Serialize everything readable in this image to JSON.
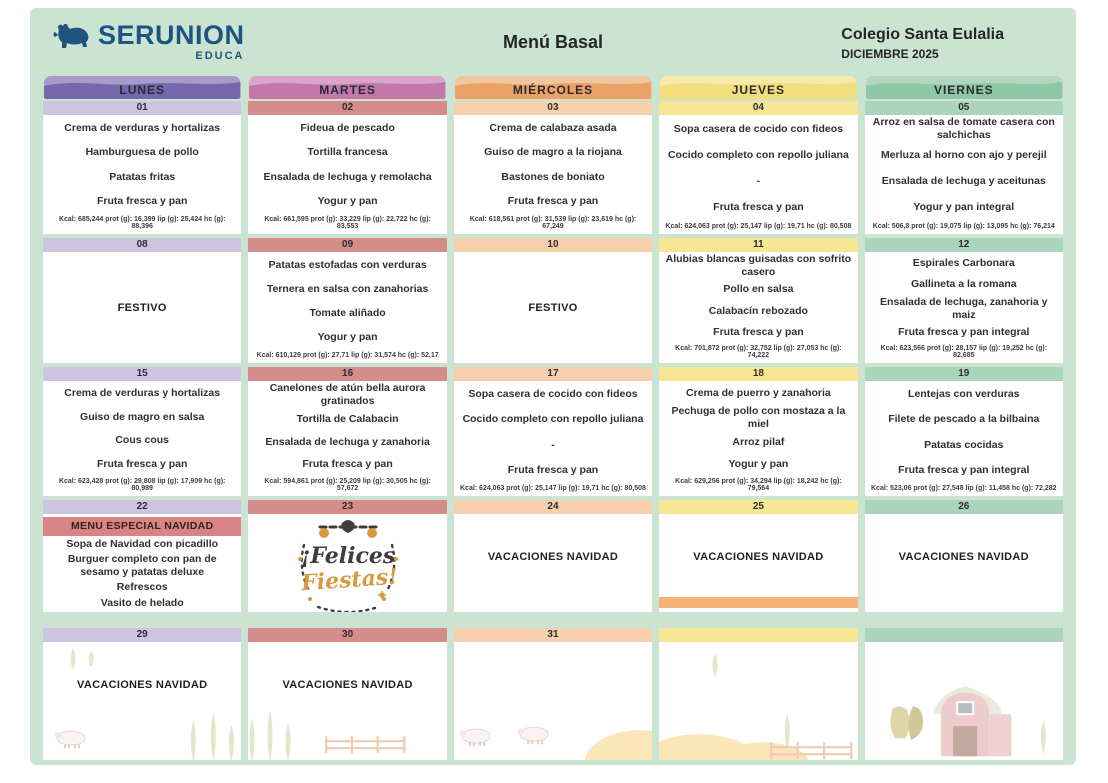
{
  "header": {
    "brand": "SERUNION",
    "brand_sub": "EDUCA",
    "title": "Menú Basal",
    "school": "Colegio Santa Eulalia",
    "month": "DICIEMBRE 2025"
  },
  "weekdays": [
    "LUNES",
    "MARTES",
    "MIÉRCOLES",
    "JUEVES",
    "VIERNES"
  ],
  "colors": {
    "panel_bg": "#cbe3d1",
    "brand_blue": "#1d5480",
    "special_banner": "#d98484",
    "orange_strip": "#f5b276",
    "columns": [
      {
        "header": "#7568ac",
        "header_light": "#a79bc9",
        "daybar": "#cdc4e2"
      },
      {
        "header": "#c477ab",
        "header_light": "#d9a6ca",
        "daybar": "#d48d8a"
      },
      {
        "header": "#eaa268",
        "header_light": "#f2c69c",
        "daybar": "#f6cfab"
      },
      {
        "header": "#f2de7d",
        "header_light": "#f7eaa8",
        "daybar": "#f7e693"
      },
      {
        "header": "#8ec7a4",
        "header_light": "#b1d7c0",
        "daybar": "#aad4bb"
      }
    ]
  },
  "weeks": [
    {
      "days": [
        {
          "number": "01",
          "items": [
            "Crema de verduras y hortalizas",
            "Hamburguesa de pollo",
            "Patatas fritas",
            "Fruta fresca y pan"
          ],
          "kcal": "Kcal: 685,244 prot (g): 16,399 lip (g): 25,424 hc (g): 88,396"
        },
        {
          "number": "02",
          "items": [
            "Fideua de pescado",
            "Tortilla francesa",
            "Ensalada de lechuga y remolacha",
            "Yogur y pan"
          ],
          "kcal": "Kcal: 661,595 prot (g): 33,229 lip (g): 22,722 hc (g): 83,553"
        },
        {
          "number": "03",
          "items": [
            "Crema de calabaza asada",
            "Guiso de magro a  la riojana",
            "Bastones de boniato",
            "Fruta fresca y pan"
          ],
          "kcal": "Kcal: 618,561 prot (g): 31,539 lip (g): 23,619 hc (g): 67,249"
        },
        {
          "number": "04",
          "items": [
            "Sopa casera de cocido con fideos",
            "Cocido completo con repollo juliana",
            "-",
            "Fruta fresca y pan"
          ],
          "kcal": "Kcal: 624,063 prot (g): 25,147 lip (g): 19,71 hc (g): 80,508"
        },
        {
          "number": "05",
          "items": [
            "Arroz en salsa de tomate casera con salchichas",
            "Merluza al horno con ajo y perejil",
            "Ensalada de lechuga y aceitunas",
            "Yogur y pan integral"
          ],
          "kcal": "Kcal: 506,8 prot (g): 19,075 lip (g): 13,095 hc (g): 76,214"
        }
      ]
    },
    {
      "days": [
        {
          "number": "08",
          "festivo": "FESTIVO"
        },
        {
          "number": "09",
          "items": [
            "Patatas estofadas con verduras",
            "Ternera en salsa con zanahorias",
            "Tomate aliñado",
            "Yogur y pan"
          ],
          "kcal": "Kcal: 610,129 prot (g): 27,71 lip (g): 31,574 hc (g): 52,17"
        },
        {
          "number": "10",
          "festivo": "FESTIVO"
        },
        {
          "number": "11",
          "items": [
            "Alubias blancas guisadas con sofrito casero",
            "Pollo en salsa",
            "Calabacín rebozado",
            "Fruta fresca y pan"
          ],
          "kcal": "Kcal: 701,872 prot (g): 32,752 lip (g): 27,053 hc (g): 74,222"
        },
        {
          "number": "12",
          "items": [
            "Espirales Carbonara",
            "Gallineta a la romana",
            "Ensalada de lechuga, zanahoria y maiz",
            "Fruta fresca y pan integral"
          ],
          "kcal": "Kcal: 623,566 prot (g): 28,157 lip (g): 19,252 hc (g): 82,685"
        }
      ]
    },
    {
      "days": [
        {
          "number": "15",
          "items": [
            "Crema de verduras y hortalizas",
            "Guiso de magro en salsa",
            "Cous cous",
            "Fruta fresca y pan"
          ],
          "kcal": "Kcal: 623,428 prot (g): 29,808 lip (g): 17,909 hc (g): 80,989"
        },
        {
          "number": "16",
          "items": [
            "Canelones de atún bella aurora gratinados",
            "Tortilla de Calabacin",
            "Ensalada de lechuga y zanahoria",
            "Fruta fresca y pan"
          ],
          "kcal": "Kcal: 594,861 prot (g): 25,209 lip (g): 30,505 hc (g): 57,672"
        },
        {
          "number": "17",
          "items": [
            "Sopa casera de cocido con fideos",
            "Cocido completo con repollo juliana",
            "-",
            "Fruta fresca y pan"
          ],
          "kcal": "Kcal: 624,063 prot (g): 25,147 lip (g): 19,71 hc (g): 80,508"
        },
        {
          "number": "18",
          "items": [
            "Crema de puerro y zanahoria",
            "Pechuga de pollo con mostaza a la miel",
            "Arroz pilaf",
            "Yogur y pan"
          ],
          "kcal": "Kcal: 629,256 prot (g): 34,294 lip (g): 18,242 hc (g): 79,564"
        },
        {
          "number": "19",
          "items": [
            "Lentejas con verduras",
            "Filete de pescado a la bilbaina",
            "Patatas cocidas",
            "Fruta fresca y pan integral"
          ],
          "kcal": "Kcal: 523,06 prot (g): 27,548 lip (g): 11,458 hc (g): 72,282"
        }
      ]
    },
    {
      "days": [
        {
          "number": "22",
          "special_banner": "MENU ESPECIAL NAVIDAD",
          "items": [
            "Sopa de Navidad con picadillo",
            "Burguer completo con pan de sesamo y patatas deluxe",
            "Refrescos",
            "Vasito de helado"
          ]
        },
        {
          "number": "23",
          "wreath": {
            "line1": "¡Felices",
            "line2": "Fiestas!"
          }
        },
        {
          "number": "24",
          "vacation": "VACACIONES NAVIDAD"
        },
        {
          "number": "25",
          "vacation": "VACACIONES NAVIDAD",
          "orange_strip": true
        },
        {
          "number": "26",
          "vacation": "VACACIONES NAVIDAD"
        }
      ]
    },
    {
      "days": [
        {
          "number": "29",
          "vacation": "VACACIONES NAVIDAD",
          "illustration": "trees-sheep"
        },
        {
          "number": "30",
          "vacation": "VACACIONES NAVIDAD",
          "illustration": "trees-fence"
        },
        {
          "number": "31",
          "illustration": "sheep-hill"
        },
        {
          "number": "",
          "illustration": "hills-fence-tree"
        },
        {
          "number": "",
          "illustration": "barn"
        }
      ]
    }
  ]
}
